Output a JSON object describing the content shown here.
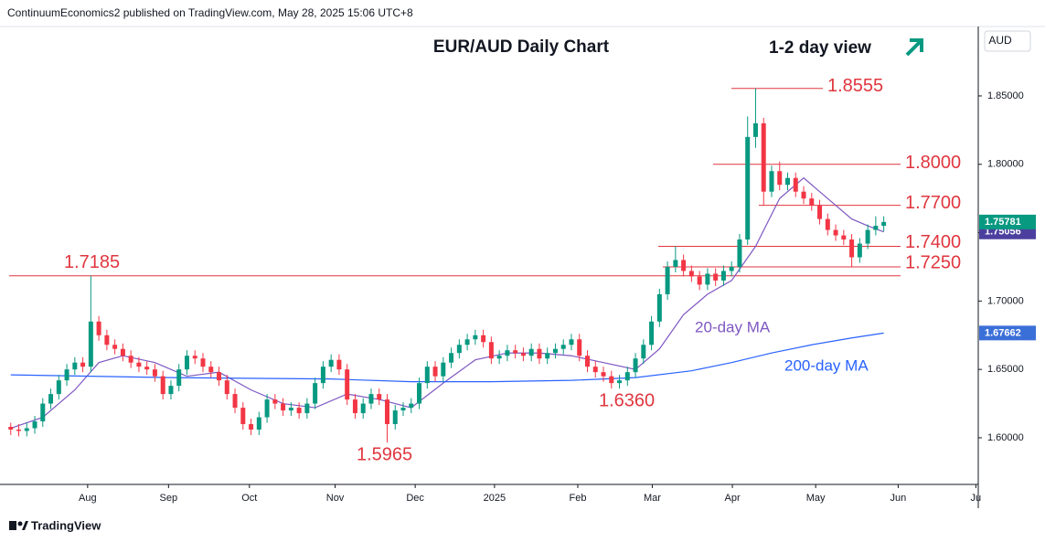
{
  "chart_data": {
    "type": "candlestick",
    "header": "ContinuumEconomics2 published on TradingView.com, May 28, 2025 15:06 UTC+8",
    "title": "EUR/AUD Daily Chart",
    "subtitle": "1-2 day view",
    "currency": "AUD",
    "brand": "TradingView",
    "up_color": "#089981",
    "down_color": "#f23645",
    "level_color": "#e0363f",
    "xlim": [
      -0.2,
      120.8
    ],
    "xticks": [
      {
        "value": 9.6,
        "label": "Aug"
      },
      {
        "value": 19.7,
        "label": "Sep"
      },
      {
        "value": 29.8,
        "label": "Oct"
      },
      {
        "value": 40.5,
        "label": "Nov"
      },
      {
        "value": 50.5,
        "label": "Dec"
      },
      {
        "value": 60.4,
        "label": "2025"
      },
      {
        "value": 70.8,
        "label": "Feb"
      },
      {
        "value": 80.1,
        "label": "Mar"
      },
      {
        "value": 90.1,
        "label": "Apr"
      },
      {
        "value": 100.5,
        "label": "May"
      },
      {
        "value": 110.8,
        "label": "Jun"
      },
      {
        "value": 120.5,
        "label": "Ju"
      }
    ],
    "ylim": [
      1.5659,
      1.9001
    ],
    "yticks": [
      {
        "value": 1.6,
        "label": "1.60000"
      },
      {
        "value": 1.65,
        "label": "1.65000"
      },
      {
        "value": 1.7,
        "label": "1.70000"
      },
      {
        "value": 1.75,
        "label": "1.75000"
      },
      {
        "value": 1.8,
        "label": "1.80000"
      },
      {
        "value": 1.85,
        "label": "1.85000"
      }
    ],
    "ohlc": {
      "open": [
        1.608,
        1.606,
        1.605,
        1.607,
        1.612,
        1.625,
        1.632,
        1.642,
        1.65,
        1.655,
        1.652,
        1.685,
        1.675,
        1.668,
        1.665,
        1.66,
        1.655,
        1.652,
        1.65,
        1.645,
        1.632,
        1.638,
        1.65,
        1.66,
        1.658,
        1.652,
        1.648,
        1.642,
        1.632,
        1.622,
        1.61,
        1.606,
        1.615,
        1.628,
        1.625,
        1.62,
        1.622,
        1.618,
        1.625,
        1.64,
        1.652,
        1.657,
        1.65,
        1.628,
        1.618,
        1.625,
        1.632,
        1.628,
        1.61,
        1.62,
        1.622,
        1.625,
        1.64,
        1.652,
        1.645,
        1.655,
        1.662,
        1.668,
        1.672,
        1.675,
        1.67,
        1.658,
        1.66,
        1.664,
        1.662,
        1.66,
        1.665,
        1.658,
        1.662,
        1.665,
        1.668,
        1.672,
        1.66,
        1.652,
        1.648,
        1.645,
        1.64,
        1.642,
        1.648,
        1.658,
        1.668,
        1.685,
        1.705,
        1.725,
        1.73,
        1.722,
        1.718,
        1.712,
        1.72,
        1.715,
        1.722,
        1.725,
        1.745,
        1.82,
        1.83,
        1.78,
        1.795,
        1.785,
        1.79,
        1.78,
        1.775,
        1.77,
        1.76,
        1.752,
        1.748,
        1.745,
        1.732,
        1.742,
        1.752,
        1.755
      ],
      "high": [
        1.611,
        1.61,
        1.611,
        1.616,
        1.629,
        1.636,
        1.646,
        1.654,
        1.659,
        1.659,
        1.7185,
        1.689,
        1.679,
        1.672,
        1.669,
        1.664,
        1.659,
        1.656,
        1.654,
        1.649,
        1.642,
        1.654,
        1.664,
        1.664,
        1.662,
        1.656,
        1.652,
        1.646,
        1.636,
        1.626,
        1.614,
        1.619,
        1.632,
        1.632,
        1.629,
        1.626,
        1.626,
        1.629,
        1.644,
        1.656,
        1.661,
        1.661,
        1.654,
        1.632,
        1.629,
        1.636,
        1.636,
        1.632,
        1.624,
        1.626,
        1.629,
        1.644,
        1.656,
        1.656,
        1.659,
        1.666,
        1.672,
        1.676,
        1.679,
        1.679,
        1.674,
        1.664,
        1.668,
        1.668,
        1.666,
        1.669,
        1.669,
        1.666,
        1.669,
        1.672,
        1.676,
        1.676,
        1.664,
        1.656,
        1.652,
        1.649,
        1.646,
        1.652,
        1.662,
        1.672,
        1.689,
        1.709,
        1.729,
        1.74,
        1.734,
        1.726,
        1.722,
        1.724,
        1.724,
        1.726,
        1.729,
        1.749,
        1.835,
        1.8555,
        1.834,
        1.799,
        1.802,
        1.794,
        1.794,
        1.784,
        1.779,
        1.774,
        1.764,
        1.756,
        1.752,
        1.749,
        1.746,
        1.756,
        1.762,
        1.762
      ],
      "low": [
        1.602,
        1.601,
        1.601,
        1.603,
        1.608,
        1.621,
        1.628,
        1.638,
        1.646,
        1.648,
        1.648,
        1.671,
        1.664,
        1.661,
        1.656,
        1.651,
        1.648,
        1.646,
        1.641,
        1.628,
        1.628,
        1.634,
        1.646,
        1.654,
        1.648,
        1.644,
        1.638,
        1.628,
        1.618,
        1.606,
        1.602,
        1.602,
        1.611,
        1.621,
        1.616,
        1.616,
        1.614,
        1.614,
        1.621,
        1.636,
        1.648,
        1.646,
        1.624,
        1.614,
        1.614,
        1.621,
        1.624,
        1.5965,
        1.606,
        1.616,
        1.618,
        1.621,
        1.636,
        1.641,
        1.641,
        1.651,
        1.658,
        1.664,
        1.668,
        1.666,
        1.654,
        1.654,
        1.656,
        1.658,
        1.656,
        1.656,
        1.654,
        1.654,
        1.658,
        1.661,
        1.664,
        1.656,
        1.648,
        1.644,
        1.641,
        1.636,
        1.636,
        1.638,
        1.644,
        1.654,
        1.664,
        1.681,
        1.701,
        1.721,
        1.718,
        1.714,
        1.708,
        1.708,
        1.711,
        1.711,
        1.718,
        1.721,
        1.741,
        1.812,
        1.77,
        1.776,
        1.781,
        1.781,
        1.776,
        1.771,
        1.766,
        1.756,
        1.748,
        1.744,
        1.741,
        1.725,
        1.728,
        1.738,
        1.748,
        1.751
      ],
      "close": [
        1.606,
        1.605,
        1.607,
        1.612,
        1.625,
        1.632,
        1.642,
        1.65,
        1.655,
        1.652,
        1.685,
        1.675,
        1.668,
        1.665,
        1.66,
        1.655,
        1.652,
        1.65,
        1.645,
        1.632,
        1.638,
        1.65,
        1.66,
        1.658,
        1.652,
        1.648,
        1.642,
        1.632,
        1.622,
        1.61,
        1.606,
        1.615,
        1.628,
        1.625,
        1.62,
        1.622,
        1.618,
        1.625,
        1.64,
        1.652,
        1.657,
        1.65,
        1.628,
        1.618,
        1.625,
        1.632,
        1.628,
        1.61,
        1.62,
        1.622,
        1.625,
        1.64,
        1.652,
        1.645,
        1.655,
        1.662,
        1.668,
        1.672,
        1.675,
        1.67,
        1.658,
        1.66,
        1.664,
        1.662,
        1.66,
        1.665,
        1.658,
        1.662,
        1.665,
        1.668,
        1.672,
        1.66,
        1.652,
        1.648,
        1.645,
        1.64,
        1.642,
        1.648,
        1.658,
        1.668,
        1.685,
        1.705,
        1.725,
        1.73,
        1.722,
        1.718,
        1.712,
        1.72,
        1.715,
        1.722,
        1.725,
        1.745,
        1.82,
        1.83,
        1.78,
        1.795,
        1.785,
        1.79,
        1.78,
        1.775,
        1.77,
        1.76,
        1.752,
        1.748,
        1.745,
        1.732,
        1.742,
        1.752,
        1.755,
        1.75781
      ]
    },
    "lines": [
      {
        "name": "20-day MA",
        "color": "#7e57c2",
        "tag_color": "#4b3f9e",
        "x": [
          0,
          4,
          8,
          11,
          14,
          18,
          22,
          26,
          30,
          34,
          38,
          42,
          46,
          50,
          54,
          58,
          62,
          66,
          70,
          74,
          78,
          81,
          84,
          87,
          90,
          93,
          96,
          99,
          102,
          105,
          107,
          109
        ],
        "values": [
          1.607,
          1.615,
          1.635,
          1.655,
          1.66,
          1.655,
          1.645,
          1.648,
          1.635,
          1.625,
          1.622,
          1.632,
          1.628,
          1.622,
          1.64,
          1.657,
          1.662,
          1.662,
          1.66,
          1.655,
          1.65,
          1.665,
          1.69,
          1.705,
          1.715,
          1.74,
          1.775,
          1.79,
          1.775,
          1.76,
          1.755,
          1.75056
        ]
      },
      {
        "name": "200-day MA",
        "color": "#2962ff",
        "tag_color": "#3b6fd8",
        "x": [
          0,
          20,
          40,
          50,
          60,
          70,
          78,
          85,
          90,
          95,
          100,
          105,
          109
        ],
        "values": [
          1.646,
          1.644,
          1.643,
          1.641,
          1.641,
          1.642,
          1.644,
          1.649,
          1.655,
          1.662,
          1.668,
          1.673,
          1.67662
        ]
      }
    ],
    "levels": [
      {
        "value": 1.8555,
        "label": "1.8555"
      },
      {
        "value": 1.8,
        "label": "1.8000"
      },
      {
        "value": 1.77,
        "label": "1.7700"
      },
      {
        "value": 1.74,
        "label": "1.7400"
      },
      {
        "value": 1.725,
        "label": "1.7250"
      },
      {
        "value": 1.7185,
        "label": "1.7185"
      }
    ],
    "annotations": [
      {
        "value": 1.636,
        "label": "1.6360"
      },
      {
        "value": 1.5965,
        "label": "1.5965"
      }
    ]
  }
}
